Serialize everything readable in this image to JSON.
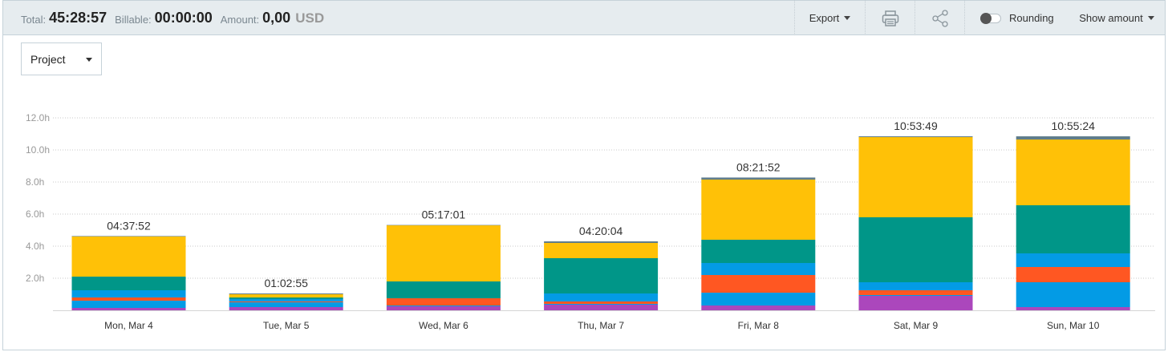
{
  "summary": {
    "total_label": "Total:",
    "total_value": "45:28:57",
    "billable_label": "Billable:",
    "billable_value": "00:00:00",
    "amount_label": "Amount:",
    "amount_value": "0,00",
    "amount_currency": "USD"
  },
  "toolbar": {
    "export_label": "Export",
    "print_icon": "printer-icon",
    "share_icon": "share-icon",
    "rounding_label": "Rounding",
    "rounding_on": false,
    "show_amount_label": "Show amount"
  },
  "group_by": {
    "selected": "Project"
  },
  "chart_data": {
    "type": "bar",
    "stacked": true,
    "ylim": [
      0,
      12
    ],
    "yticks": [
      "2.0h",
      "4.0h",
      "6.0h",
      "8.0h",
      "10.0h",
      "12.0h"
    ],
    "grid": true,
    "categories": [
      "Mon, Mar 4",
      "Tue, Mar 5",
      "Wed, Mar 6",
      "Thu, Mar 7",
      "Fri, Mar 8",
      "Sat, Mar 9",
      "Sun, Mar 10"
    ],
    "totals": [
      "04:37:52",
      "01:02:55",
      "05:17:01",
      "04:20:04",
      "08:21:52",
      "10:53:49",
      "10:55:24"
    ],
    "series": [
      {
        "color": "#ab47bc",
        "values": [
          0.15,
          0.2,
          0.25,
          0.35,
          0.3,
          0.9,
          0.2
        ]
      },
      {
        "color": "#039be5",
        "values": [
          0.45,
          0.3,
          0.05,
          0.05,
          0.8,
          0.05,
          1.55
        ]
      },
      {
        "color": "#ff5722",
        "values": [
          0.2,
          0.05,
          0.45,
          0.15,
          1.1,
          0.3,
          0.95
        ]
      },
      {
        "color": "#039be5",
        "values": [
          0.45,
          0.15,
          0.0,
          0.5,
          0.75,
          0.5,
          0.85
        ]
      },
      {
        "color": "#009688",
        "values": [
          0.85,
          0.1,
          1.05,
          2.2,
          1.45,
          4.05,
          3.0
        ]
      },
      {
        "color": "#ffc107",
        "values": [
          2.5,
          0.2,
          3.5,
          0.95,
          3.75,
          5.0,
          4.1
        ]
      },
      {
        "color": "#607d8b",
        "values": [
          0.03,
          0.05,
          0.02,
          0.1,
          0.13,
          0.05,
          0.2
        ]
      }
    ]
  }
}
